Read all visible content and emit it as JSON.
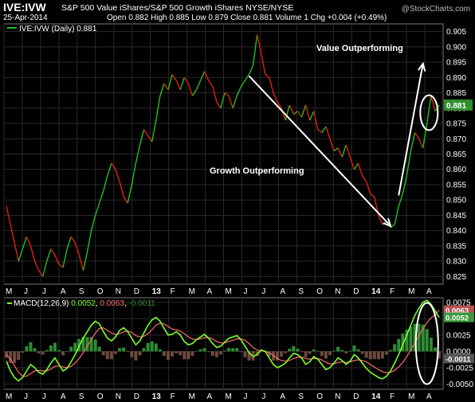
{
  "header": {
    "symbol": "IVE:IVW",
    "description": "S&P 500 Value iShares/S&P 500 Growth iShares  NYSE/NYSE",
    "date": "25-Apr-2014",
    "stats": "Open 0.882  High 0.885  Low 0.879  Close 0.881  Volume 1  Chg +0.004 (+0.49%)",
    "logo": "@StockCharts.com"
  },
  "colors": {
    "up": "#22c01e",
    "down": "#e02010",
    "macd": "#7cff2a",
    "signal": "#ff6b6b",
    "hist_pos": "#2f8c34",
    "hist_neg": "#6e4a3e",
    "grid": "#2a2a2a",
    "last_bg": "#2f8f2f"
  },
  "chart_data": [
    {
      "type": "line",
      "legend": "IVE:IVW (Daily) 0.881",
      "ylim": [
        0.8225,
        0.9075
      ],
      "yticks": [
        "0.905",
        "0.900",
        "0.895",
        "0.890",
        "0.885",
        "0.880",
        "0.875",
        "0.870",
        "0.865",
        "0.860",
        "0.855",
        "0.850",
        "0.845",
        "0.840",
        "0.835",
        "0.830",
        "0.825"
      ],
      "x_months": [
        "M",
        "J",
        "J",
        "A",
        "S",
        "O",
        "N",
        "D",
        "13",
        "F",
        "M",
        "A",
        "M",
        "J",
        "J",
        "A",
        "S",
        "O",
        "N",
        "D",
        "14",
        "F",
        "M",
        "A"
      ],
      "x": [
        0,
        1,
        2,
        3,
        4,
        5,
        6,
        7,
        8,
        9,
        10,
        11,
        12,
        13,
        14,
        15,
        16,
        17,
        18,
        19,
        20,
        21,
        22,
        23,
        24,
        25,
        26,
        27,
        28,
        29,
        30,
        31,
        32,
        33,
        34,
        35,
        36,
        37,
        38,
        39,
        40,
        41,
        42,
        43,
        44,
        45,
        46,
        47,
        48,
        49,
        50,
        51,
        52,
        53,
        54,
        55,
        56,
        57,
        58,
        59,
        60,
        61,
        62,
        63,
        64,
        65,
        66,
        67,
        68,
        69,
        70,
        71,
        72,
        73,
        74,
        75,
        76,
        77,
        78,
        79,
        80,
        81,
        82,
        83,
        84,
        85,
        86,
        87,
        88,
        89,
        90,
        91,
        92,
        93,
        94,
        95,
        96,
        97,
        98,
        99,
        100,
        101,
        102,
        103,
        104,
        105,
        106,
        107
      ],
      "values": [
        0.848,
        0.842,
        0.836,
        0.83,
        0.834,
        0.838,
        0.835,
        0.83,
        0.827,
        0.825,
        0.83,
        0.834,
        0.832,
        0.829,
        0.828,
        0.834,
        0.838,
        0.836,
        0.832,
        0.827,
        0.833,
        0.84,
        0.845,
        0.849,
        0.853,
        0.858,
        0.862,
        0.86,
        0.856,
        0.851,
        0.849,
        0.855,
        0.862,
        0.868,
        0.873,
        0.871,
        0.869,
        0.876,
        0.884,
        0.888,
        0.886,
        0.891,
        0.889,
        0.886,
        0.89,
        0.888,
        0.884,
        0.886,
        0.889,
        0.892,
        0.889,
        0.887,
        0.882,
        0.88,
        0.885,
        0.884,
        0.88,
        0.884,
        0.887,
        0.889,
        0.891,
        0.894,
        0.904,
        0.898,
        0.891,
        0.89,
        0.885,
        0.882,
        0.88,
        0.876,
        0.881,
        0.878,
        0.879,
        0.877,
        0.881,
        0.876,
        0.879,
        0.873,
        0.872,
        0.874,
        0.87,
        0.866,
        0.867,
        0.864,
        0.868,
        0.864,
        0.86,
        0.862,
        0.858,
        0.856,
        0.852,
        0.851,
        0.845,
        0.842,
        0.843,
        0.841,
        0.842,
        0.848,
        0.852,
        0.858,
        0.866,
        0.872,
        0.87,
        0.867,
        0.875,
        0.884,
        0.879,
        0.881
      ],
      "last_value_label": "0.881",
      "annotations": {
        "growth": "Growth Outperforming",
        "value": "Value Outperforming"
      }
    },
    {
      "type": "line",
      "legend_label": "MACD(12,26,9)",
      "legend_values": [
        "0.0052",
        "0.0063",
        "-0.0011"
      ],
      "ylim": [
        -0.0058,
        0.0082
      ],
      "yticks": [
        "0.0075",
        "0.0050",
        "0.0025",
        "0.0000",
        "-0.0025",
        "-0.0050"
      ],
      "x_months": [
        "M",
        "J",
        "J",
        "A",
        "S",
        "O",
        "N",
        "D",
        "14",
        "F",
        "M",
        "A"
      ],
      "macd_values": [
        -0.0015,
        -0.003,
        -0.004,
        -0.0045,
        -0.004,
        -0.003,
        -0.002,
        -0.0025,
        -0.0032,
        -0.0035,
        -0.0028,
        -0.0018,
        -0.001,
        -0.002,
        -0.003,
        -0.0026,
        -0.0016,
        -0.0005,
        0.0008,
        0.002,
        0.003,
        0.004,
        0.0046,
        0.0042,
        0.003,
        0.002,
        0.0016,
        0.0022,
        0.0032,
        0.0036,
        0.003,
        0.002,
        0.001,
        0.0016,
        0.0028,
        0.004,
        0.0048,
        0.0052,
        0.0046,
        0.0035,
        0.0025,
        0.0026,
        0.003,
        0.0025,
        0.0015,
        0.001,
        0.0012,
        0.0018,
        0.0022,
        0.0026,
        0.002,
        0.0012,
        0.0006,
        0.0008,
        0.0014,
        0.002,
        0.0022,
        0.0024,
        0.0018,
        0.0008,
        -0.0002,
        -0.0008,
        -0.0005,
        0.0002,
        0.0,
        -0.001,
        -0.002,
        -0.0025,
        -0.0022,
        -0.0018,
        -0.001,
        -0.0003,
        -0.0005,
        -0.001,
        -0.002,
        -0.0016,
        -0.0008,
        -0.0012,
        -0.002,
        -0.0028,
        -0.0025,
        -0.0018,
        -0.001,
        -0.0014,
        -0.002,
        -0.0015,
        -0.0005,
        -0.001,
        -0.0018,
        -0.0026,
        -0.0032,
        -0.0036,
        -0.004,
        -0.0042,
        -0.0038,
        -0.003,
        -0.0018,
        -0.0005,
        0.001,
        0.0025,
        0.004,
        0.0055,
        0.0066,
        0.0075,
        0.0078,
        0.0072,
        0.0062,
        0.0052
      ],
      "signal_values": [
        -0.0005,
        -0.0012,
        -0.0022,
        -0.0032,
        -0.0038,
        -0.0038,
        -0.0034,
        -0.003,
        -0.0029,
        -0.003,
        -0.003,
        -0.0027,
        -0.0023,
        -0.0022,
        -0.0024,
        -0.0025,
        -0.0023,
        -0.0018,
        -0.0011,
        -0.0002,
        0.0008,
        0.0018,
        0.0028,
        0.0035,
        0.0036,
        0.0032,
        0.0028,
        0.0026,
        0.0027,
        0.003,
        0.0031,
        0.0029,
        0.0024,
        0.0022,
        0.0023,
        0.0027,
        0.0033,
        0.004,
        0.0043,
        0.0042,
        0.0038,
        0.0034,
        0.0033,
        0.0031,
        0.0027,
        0.0022,
        0.0019,
        0.0018,
        0.0019,
        0.0021,
        0.0021,
        0.0019,
        0.0015,
        0.0013,
        0.0013,
        0.0015,
        0.0017,
        0.0019,
        0.0019,
        0.0017,
        0.0012,
        0.0006,
        0.0002,
        0.0001,
        0.0,
        -0.0002,
        -0.0006,
        -0.0011,
        -0.0014,
        -0.0015,
        -0.0014,
        -0.0011,
        -0.0009,
        -0.0009,
        -0.0011,
        -0.0012,
        -0.0011,
        -0.0011,
        -0.0013,
        -0.0017,
        -0.0019,
        -0.0019,
        -0.0017,
        -0.0016,
        -0.0017,
        -0.0016,
        -0.0014,
        -0.0013,
        -0.0014,
        -0.0016,
        -0.002,
        -0.0024,
        -0.0028,
        -0.0031,
        -0.0033,
        -0.0032,
        -0.0029,
        -0.0024,
        -0.0017,
        -0.0008,
        0.0002,
        0.0013,
        0.0024,
        0.0034,
        0.0044,
        0.0051,
        0.0056,
        0.0063
      ]
    }
  ]
}
